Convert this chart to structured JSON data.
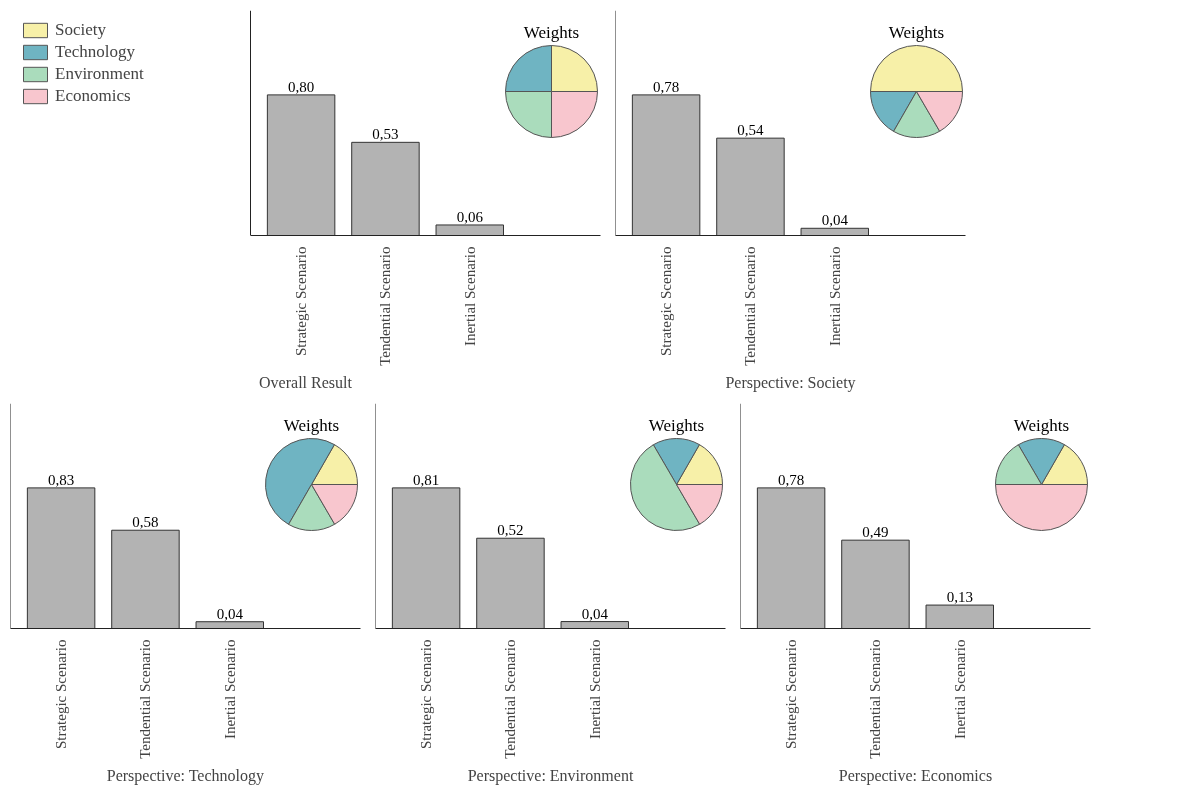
{
  "chart_data": [
    {
      "type": "bar",
      "xlabel": "Overall Result",
      "categories": [
        "Strategic Scenario",
        "Tendential Scenario",
        "Inertial Scenario"
      ],
      "values": [
        0.8,
        0.53,
        0.06
      ],
      "value_labels": [
        "0,80",
        "0,53",
        "0,06"
      ],
      "color": "#b3b3b3",
      "tick_labels": "x",
      "grid": false
    },
    {
      "type": "pie",
      "title": "Weights",
      "categories": [
        "Society",
        "Technology",
        "Environment",
        "Economics"
      ],
      "values": [
        25,
        25,
        25,
        25
      ],
      "colors": [
        "#f7f0a8",
        "#6fb4c2",
        "#aadcbc",
        "#f8c6ce"
      ],
      "legend": "left"
    },
    {
      "type": "bar",
      "xlabel": "Perspective: Society",
      "categories": [
        "Strategic Scenario",
        "Tendential Scenario",
        "Inertial Scenario"
      ],
      "values": [
        0.78,
        0.54,
        0.04
      ],
      "value_labels": [
        "0,78",
        "0,54",
        "0,04"
      ],
      "color": "#b3b3b3",
      "tick_labels": "x",
      "grid": false
    },
    {
      "type": "pie",
      "title": "Weights",
      "categories": [
        null,
        null,
        null,
        null
      ],
      "values": [
        50,
        16.7,
        16.7,
        16.6
      ],
      "colors": [
        "#f7f0a8",
        "#6fb4c2",
        "#aadcbc",
        "#f8c6ce"
      ]
    },
    {
      "type": "bar",
      "xlabel": "Perspective: Technology",
      "categories": [
        "Strategic Scenario",
        "Tendential Scenario",
        "Inertial Scenario"
      ],
      "values": [
        0.83,
        0.58,
        0.04
      ],
      "value_labels": [
        "0,83",
        "0,58",
        "0,04"
      ],
      "color": "#b3b3b3",
      "tick_labels": "x",
      "grid": false
    },
    {
      "type": "pie",
      "title": "Weights",
      "categories": [
        null,
        null,
        null,
        null
      ],
      "values": [
        16.7,
        50,
        16.7,
        16.6
      ],
      "colors": [
        "#f7f0a8",
        "#6fb4c2",
        "#aadcbc",
        "#f8c6ce"
      ]
    },
    {
      "type": "bar",
      "xlabel": "Perspective: Environment",
      "categories": [
        "Strategic Scenario",
        "Tendential Scenario",
        "Inertial Scenario"
      ],
      "values": [
        0.81,
        0.52,
        0.04
      ],
      "value_labels": [
        "0,81",
        "0,52",
        "0,04"
      ],
      "color": "#b3b3b3",
      "tick_labels": "x",
      "grid": false
    },
    {
      "type": "pie",
      "title": "Weights",
      "categories": [
        null,
        null,
        null,
        null
      ],
      "values": [
        16.7,
        16.7,
        50,
        16.6
      ],
      "colors": [
        "#f7f0a8",
        "#6fb4c2",
        "#aadcbc",
        "#f8c6ce"
      ]
    },
    {
      "type": "bar",
      "xlabel": "Perspective: Economics",
      "categories": [
        "Strategic Scenario",
        "Tendential Scenario",
        "Inertial Scenario"
      ],
      "values": [
        0.78,
        0.49,
        0.13
      ],
      "value_labels": [
        "0,78",
        "0,49",
        "0,13"
      ],
      "color": "#b3b3b3",
      "tick_labels": "x",
      "grid": false
    },
    {
      "type": "pie",
      "title": "Weights",
      "categories": [
        null,
        null,
        null,
        null
      ],
      "values": [
        16.7,
        16.7,
        16.6,
        50
      ],
      "colors": [
        "#f7f0a8",
        "#6fb4c2",
        "#aadcbc",
        "#f8c6ce"
      ]
    }
  ]
}
